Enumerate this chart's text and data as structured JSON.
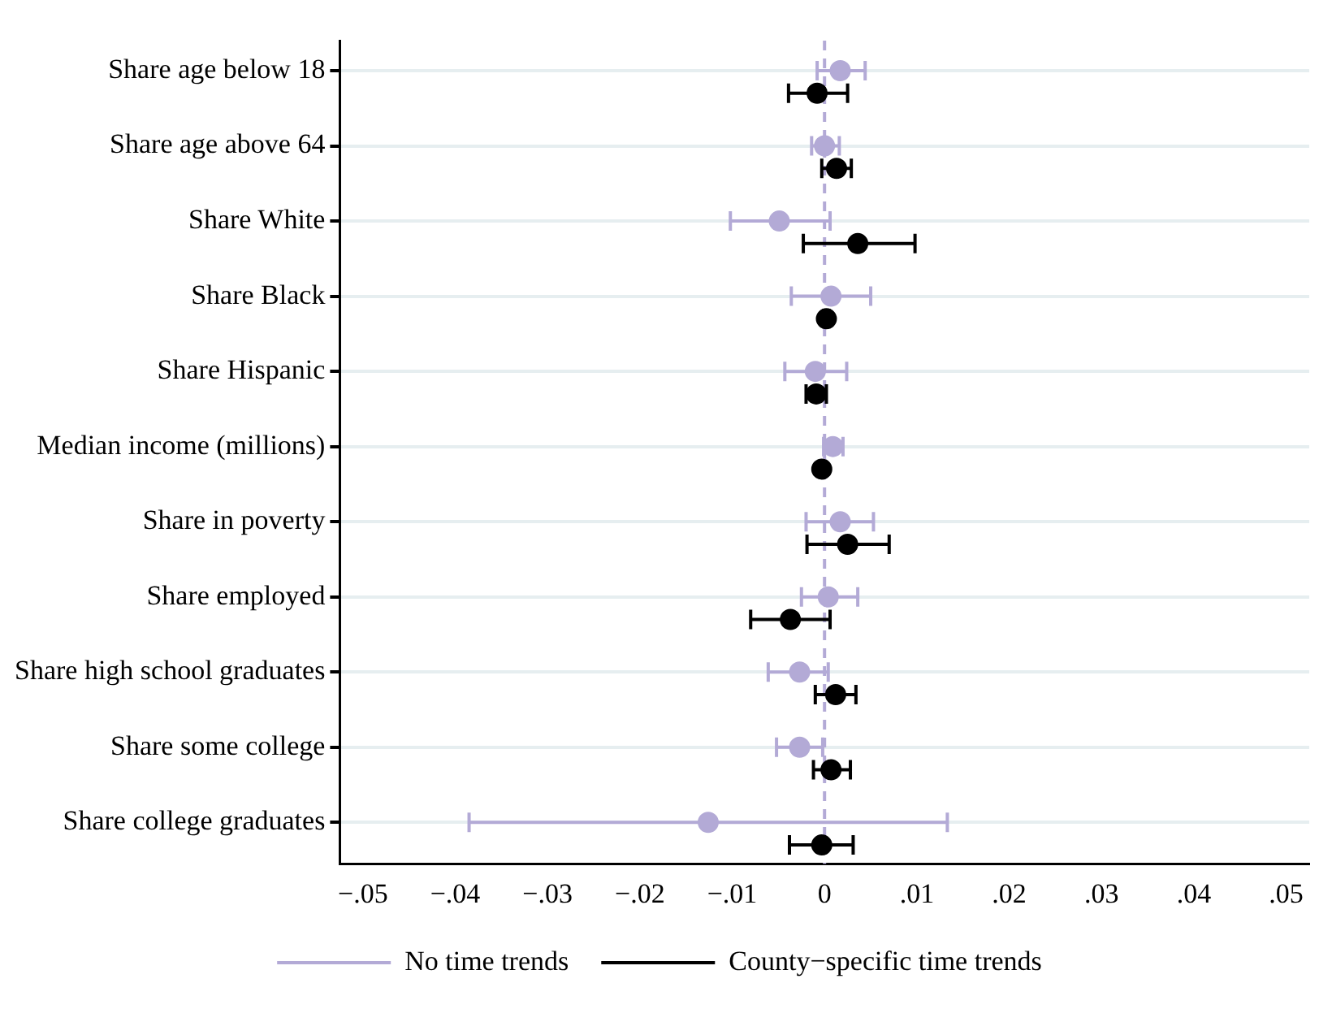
{
  "chart_data": {
    "type": "scatter",
    "orientation": "horizontal",
    "categories": [
      "Share age below 18",
      "Share age above 64",
      "Share White",
      "Share Black",
      "Share Hispanic",
      "Median income (millions)",
      "Share in poverty",
      "Share employed",
      "Share high school graduates",
      "Share some college",
      "Share college graduates"
    ],
    "series": [
      {
        "name": "No time trends",
        "color": "#b3aad6",
        "values": [
          0.0017,
          0.0,
          -0.0049,
          0.0007,
          -0.001,
          0.0009,
          0.0017,
          0.0004,
          -0.0027,
          -0.0027,
          -0.0126
        ],
        "errors": [
          [
            -0.0008,
            0.0044
          ],
          [
            -0.0014,
            0.0016
          ],
          [
            -0.0102,
            0.0006
          ],
          [
            -0.0036,
            0.005
          ],
          [
            -0.0043,
            0.0024
          ],
          [
            -0.0001,
            0.002
          ],
          [
            -0.002,
            0.0053
          ],
          [
            -0.0025,
            0.0036
          ],
          [
            -0.0061,
            0.0004
          ],
          [
            -0.0052,
            -0.0002
          ],
          [
            -0.0385,
            0.0133
          ]
        ]
      },
      {
        "name": "County−specific time trends",
        "color": "#000000",
        "values": [
          -0.0008,
          0.0013,
          0.0036,
          0.0002,
          -0.0009,
          -0.0003,
          0.0025,
          -0.0037,
          0.0012,
          0.0007,
          -0.0003
        ],
        "errors": [
          [
            -0.0039,
            0.0025
          ],
          [
            -0.0003,
            0.0029
          ],
          [
            -0.0023,
            0.0098
          ],
          [
            -0.0001,
            0.0005
          ],
          [
            -0.002,
            0.0002
          ],
          [
            -0.0005,
            -0.0001
          ],
          [
            -0.0019,
            0.007
          ],
          [
            -0.008,
            0.0006
          ],
          [
            -0.001,
            0.0034
          ],
          [
            -0.0012,
            0.0028
          ],
          [
            -0.0038,
            0.0031
          ]
        ]
      }
    ],
    "xlim": [
      -0.0525,
      0.0525
    ],
    "xticks": [
      {
        "value": -0.05,
        "label": "−.05"
      },
      {
        "value": -0.04,
        "label": "−.04"
      },
      {
        "value": -0.03,
        "label": "−.03"
      },
      {
        "value": -0.02,
        "label": "−.02"
      },
      {
        "value": -0.01,
        "label": "−.01"
      },
      {
        "value": 0,
        "label": "0"
      },
      {
        "value": 0.01,
        "label": ".01"
      },
      {
        "value": 0.02,
        "label": ".02"
      },
      {
        "value": 0.03,
        "label": ".03"
      },
      {
        "value": 0.04,
        "label": ".04"
      },
      {
        "value": 0.05,
        "label": ".05"
      }
    ],
    "ref_lines": [
      {
        "axis": "x",
        "value": 0,
        "color": "#b3aad6",
        "line_style": "dashed"
      }
    ],
    "grid": "y",
    "legend": "bottom",
    "marker": "circle"
  }
}
